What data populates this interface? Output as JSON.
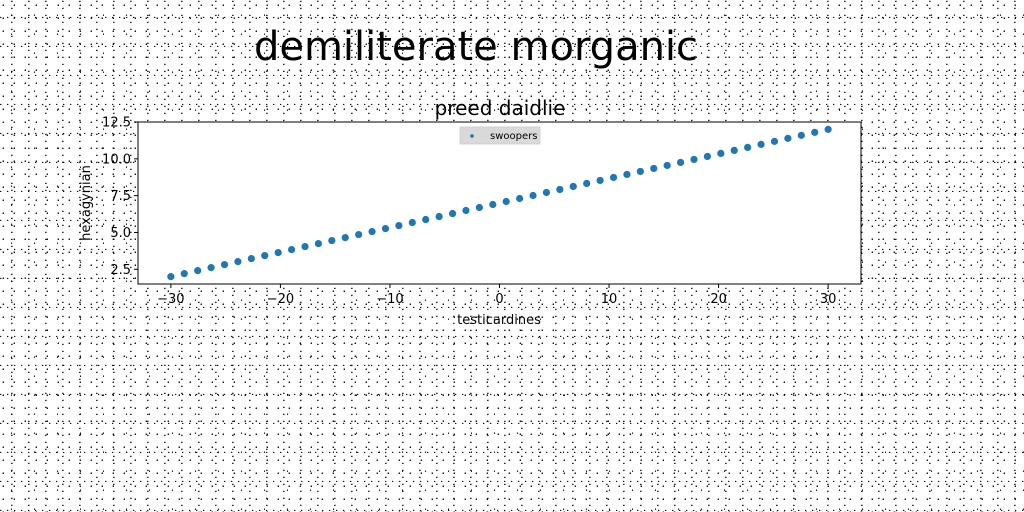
{
  "figure": {
    "title": "demiliterate morganic"
  },
  "chart_data": {
    "type": "scatter",
    "title": "preed daidlie",
    "xlabel": "testicardines",
    "ylabel": "hexagynian",
    "xlim": [
      -33.0,
      33.0
    ],
    "ylim": [
      1.5,
      12.5
    ],
    "xticks": [
      -30,
      -20,
      -10,
      0,
      10,
      20,
      30
    ],
    "xtick_labels": [
      "−30",
      "−20",
      "−10",
      "0",
      "10",
      "20",
      "30"
    ],
    "yticks": [
      2.5,
      5.0,
      7.5,
      10.0,
      12.5
    ],
    "ytick_labels": [
      "2.5",
      "5.0",
      "7.5",
      "10.0",
      "12.5"
    ],
    "grid": false,
    "legend": {
      "position": "top-center",
      "entries": [
        "swoopers"
      ]
    },
    "series": [
      {
        "name": "swoopers",
        "color": "#1f77b4",
        "x": [
          -30.0,
          -28.775510204,
          -27.551020408,
          -26.326530612,
          -25.102040816,
          -23.87755102,
          -22.653061224,
          -21.428571429,
          -20.204081633,
          -18.979591837,
          -17.755102041,
          -16.530612245,
          -15.306122449,
          -14.081632653,
          -12.857142857,
          -11.632653061,
          -10.408163265,
          -9.183673469,
          -7.959183673,
          -6.734693878,
          -5.510204082,
          -4.285714286,
          -3.06122449,
          -1.836734694,
          -0.612244898,
          0.612244898,
          1.836734694,
          3.06122449,
          4.285714286,
          5.510204082,
          6.734693878,
          7.959183673,
          9.183673469,
          10.408163265,
          11.632653061,
          12.857142857,
          14.081632653,
          15.306122449,
          16.530612245,
          17.755102041,
          18.979591837,
          20.204081633,
          21.428571429,
          22.653061224,
          23.87755102,
          25.102040816,
          26.326530612,
          27.551020408,
          28.775510204,
          30.0
        ],
        "y": [
          2.0,
          2.204081633,
          2.408163265,
          2.612244898,
          2.816326531,
          3.020408163,
          3.224489796,
          3.428571429,
          3.632653061,
          3.836734694,
          4.040816327,
          4.244897959,
          4.448979592,
          4.653061224,
          4.857142857,
          5.06122449,
          5.265306122,
          5.469387755,
          5.673469388,
          5.87755102,
          6.081632653,
          6.285714286,
          6.489795918,
          6.693877551,
          6.897959184,
          7.102040816,
          7.306122449,
          7.510204082,
          7.714285714,
          7.918367347,
          8.12244898,
          8.326530612,
          8.530612245,
          8.734693878,
          8.93877551,
          9.142857143,
          9.346938776,
          9.551020408,
          9.755102041,
          9.959183673,
          10.163265306,
          10.367346939,
          10.571428571,
          10.775510204,
          10.979591837,
          11.183673469,
          11.387755102,
          11.591836735,
          11.795918367,
          12.0
        ]
      }
    ]
  }
}
